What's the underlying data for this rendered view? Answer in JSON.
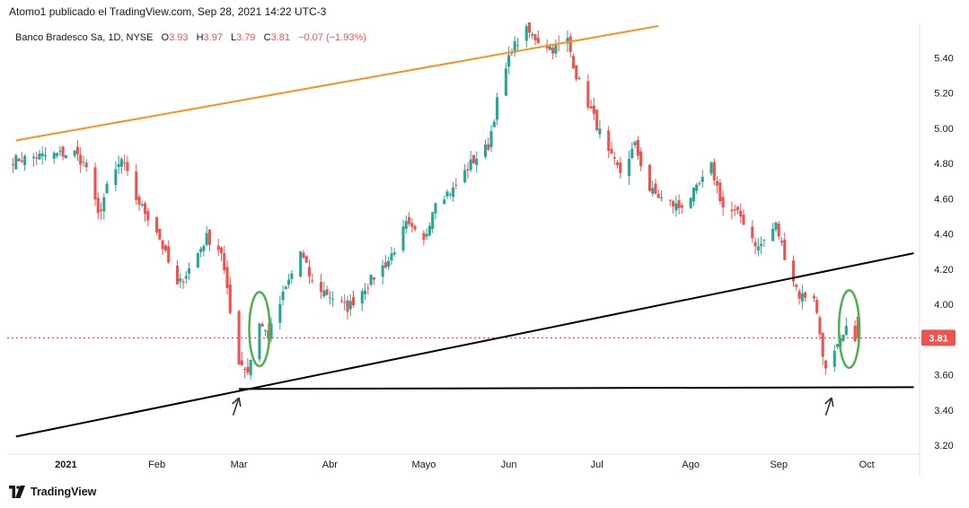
{
  "header": {
    "publisher_line": "Atomo1 publicado el TradingView.com, Sep 28, 2021 14:22 UTC-3"
  },
  "legend": {
    "symbol": "Banco Bradesco Sa, 1D, NYSE",
    "o_label": "O",
    "o_value": "3.93",
    "h_label": "H",
    "h_value": "3.97",
    "l_label": "L",
    "l_value": "3.79",
    "c_label": "C",
    "c_value": "3.81",
    "change": "−0.07 (−1.93%)"
  },
  "footer": {
    "brand": "TradingView",
    "logo_icon": "tradingview-logo-icon"
  },
  "colors": {
    "up": "#26a69a",
    "down": "#ef5350",
    "orange_line": "#f7931a",
    "black_line": "#000000",
    "ellipse": "#4caf50",
    "price_line": "#ef5350",
    "arrow": "#333333"
  },
  "chart_data": {
    "type": "candlestick",
    "title": "Banco Bradesco Sa, 1D, NYSE",
    "xlabel": "",
    "ylabel": "",
    "ylim": [
      3.15,
      5.6
    ],
    "y_ticks": [
      "5.40",
      "5.20",
      "5.00",
      "4.80",
      "4.60",
      "4.40",
      "4.20",
      "4.00",
      "3.80",
      "3.60",
      "3.40",
      "3.20"
    ],
    "x_tick_labels": [
      {
        "label": "2021",
        "date": "2021-01-01"
      },
      {
        "label": "Feb",
        "date": "2021-02-01"
      },
      {
        "label": "Mar",
        "date": "2021-03-01"
      },
      {
        "label": "Abr",
        "date": "2021-04-01"
      },
      {
        "label": "Mayo",
        "date": "2021-05-03"
      },
      {
        "label": "Jun",
        "date": "2021-06-01"
      },
      {
        "label": "Jul",
        "date": "2021-07-01"
      },
      {
        "label": "Ago",
        "date": "2021-08-02"
      },
      {
        "label": "Sep",
        "date": "2021-09-01"
      },
      {
        "label": "Oct",
        "date": "2021-10-01"
      }
    ],
    "current_price": {
      "label": "3.81",
      "value": 3.81
    },
    "close_path": [
      [
        "2020-12-14",
        4.82
      ],
      [
        "2020-12-23",
        4.84
      ],
      [
        "2021-01-04",
        4.86
      ],
      [
        "2021-01-08",
        4.78
      ],
      [
        "2021-01-12",
        4.5
      ],
      [
        "2021-01-15",
        4.66
      ],
      [
        "2021-01-20",
        4.82
      ],
      [
        "2021-01-25",
        4.6
      ],
      [
        "2021-02-01",
        4.42
      ],
      [
        "2021-02-04",
        4.28
      ],
      [
        "2021-02-08",
        4.1
      ],
      [
        "2021-02-12",
        4.2
      ],
      [
        "2021-02-18",
        4.38
      ],
      [
        "2021-02-23",
        4.3
      ],
      [
        "2021-02-26",
        3.95
      ],
      [
        "2021-03-01",
        3.68
      ],
      [
        "2021-03-04",
        3.62
      ],
      [
        "2021-03-08",
        3.9
      ],
      [
        "2021-03-11",
        3.82
      ],
      [
        "2021-03-16",
        4.05
      ],
      [
        "2021-03-22",
        4.3
      ],
      [
        "2021-03-26",
        4.12
      ],
      [
        "2021-04-01",
        4.05
      ],
      [
        "2021-04-07",
        3.98
      ],
      [
        "2021-04-14",
        4.12
      ],
      [
        "2021-04-21",
        4.25
      ],
      [
        "2021-04-27",
        4.45
      ],
      [
        "2021-05-03",
        4.35
      ],
      [
        "2021-05-07",
        4.6
      ],
      [
        "2021-05-13",
        4.65
      ],
      [
        "2021-05-19",
        4.8
      ],
      [
        "2021-05-25",
        4.9
      ],
      [
        "2021-05-28",
        5.15
      ],
      [
        "2021-06-02",
        5.45
      ],
      [
        "2021-06-07",
        5.55
      ],
      [
        "2021-06-11",
        5.5
      ],
      [
        "2021-06-16",
        5.45
      ],
      [
        "2021-06-21",
        5.5
      ],
      [
        "2021-06-24",
        5.3
      ],
      [
        "2021-06-29",
        5.1
      ],
      [
        "2021-07-05",
        4.85
      ],
      [
        "2021-07-09",
        4.75
      ],
      [
        "2021-07-14",
        4.9
      ],
      [
        "2021-07-19",
        4.65
      ],
      [
        "2021-07-23",
        4.6
      ],
      [
        "2021-07-29",
        4.55
      ],
      [
        "2021-08-04",
        4.65
      ],
      [
        "2021-08-09",
        4.78
      ],
      [
        "2021-08-13",
        4.55
      ],
      [
        "2021-08-19",
        4.5
      ],
      [
        "2021-08-25",
        4.32
      ],
      [
        "2021-08-31",
        4.45
      ],
      [
        "2021-09-03",
        4.28
      ],
      [
        "2021-09-08",
        4.05
      ],
      [
        "2021-09-13",
        4.05
      ],
      [
        "2021-09-17",
        3.62
      ],
      [
        "2021-09-21",
        3.75
      ],
      [
        "2021-09-24",
        3.85
      ],
      [
        "2021-09-28",
        3.81
      ]
    ],
    "annotations": [
      {
        "type": "trendline",
        "name": "orange-resistance-line",
        "color": "#f7931a",
        "from": [
          "2020-12-15",
          4.93
        ],
        "to": [
          "2021-07-22",
          5.58
        ]
      },
      {
        "type": "trendline",
        "name": "rising-support-line",
        "color": "#000000",
        "from": [
          "2020-12-15",
          3.25
        ],
        "to": [
          "2021-10-17",
          4.29
        ]
      },
      {
        "type": "trendline",
        "name": "horizontal-support-line",
        "color": "#000000",
        "from": [
          "2021-03-01",
          3.52
        ],
        "to": [
          "2021-10-17",
          3.53
        ]
      },
      {
        "type": "ellipse",
        "name": "march-ellipse",
        "color": "#4caf50",
        "center": [
          "2021-03-08",
          3.86
        ],
        "rx_days": 3.5,
        "ry_price": 0.21
      },
      {
        "type": "ellipse",
        "name": "september-ellipse",
        "color": "#4caf50",
        "center": [
          "2021-09-25",
          3.86
        ],
        "rx_days": 3.5,
        "ry_price": 0.22
      },
      {
        "type": "arrow",
        "name": "march-arrow",
        "color": "#333333",
        "from": [
          "2021-02-27",
          3.37
        ],
        "to": [
          "2021-03-01",
          3.47
        ]
      },
      {
        "type": "arrow",
        "name": "september-arrow",
        "color": "#333333",
        "from": [
          "2021-09-17",
          3.37
        ],
        "to": [
          "2021-09-19",
          3.47
        ]
      }
    ]
  }
}
